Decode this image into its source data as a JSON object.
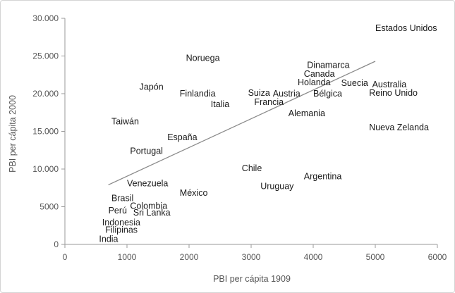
{
  "chart_data": {
    "type": "scatter",
    "title": "",
    "xlabel": "PBI per cápita 1909",
    "ylabel": "PBI per cápita 2000",
    "xlim": [
      0,
      6000
    ],
    "ylim": [
      0,
      30000
    ],
    "x_ticks": [
      0,
      1000,
      2000,
      3000,
      4000,
      5000,
      6000
    ],
    "x_tick_labels": [
      "0",
      "1000",
      "2000",
      "3000",
      "4000",
      "5000",
      "6000"
    ],
    "y_ticks": [
      0,
      5000,
      10000,
      15000,
      20000,
      25000,
      30000
    ],
    "y_tick_labels": [
      "0",
      "5000",
      "10.000",
      "15.000",
      "20.000",
      "25.000",
      "30.000"
    ],
    "grid": false,
    "legend": "none",
    "trendline": {
      "x": [
        700,
        5000
      ],
      "y": [
        7900,
        24300
      ]
    },
    "points": [
      {
        "label": "Estados Unidos",
        "x": 5000,
        "y": 28700
      },
      {
        "label": "Noruega",
        "x": 1950,
        "y": 24700
      },
      {
        "label": "Dinamarca",
        "x": 3900,
        "y": 23800
      },
      {
        "label": "Canada",
        "x": 3850,
        "y": 22600
      },
      {
        "label": "Holanda",
        "x": 3750,
        "y": 21500
      },
      {
        "label": "Suecia",
        "x": 4450,
        "y": 21400
      },
      {
        "label": "Australia",
        "x": 4950,
        "y": 21200
      },
      {
        "label": "Japón",
        "x": 1200,
        "y": 20900
      },
      {
        "label": "Suiza",
        "x": 2950,
        "y": 20100
      },
      {
        "label": "Austria",
        "x": 3350,
        "y": 20000
      },
      {
        "label": "Finlandia",
        "x": 1850,
        "y": 20000
      },
      {
        "label": "Bélgica",
        "x": 4000,
        "y": 20000
      },
      {
        "label": "Reino Unido",
        "x": 4900,
        "y": 20100
      },
      {
        "label": "Francia",
        "x": 3050,
        "y": 18900
      },
      {
        "label": "Italia",
        "x": 2350,
        "y": 18600
      },
      {
        "label": "Alemania",
        "x": 3600,
        "y": 17400
      },
      {
        "label": "Taiwán",
        "x": 750,
        "y": 16300
      },
      {
        "label": "Nueva Zelanda",
        "x": 4900,
        "y": 15500
      },
      {
        "label": "España",
        "x": 1650,
        "y": 14200
      },
      {
        "label": "Portugal",
        "x": 1050,
        "y": 12400
      },
      {
        "label": "Chile",
        "x": 2850,
        "y": 10100
      },
      {
        "label": "Argentina",
        "x": 3850,
        "y": 9000
      },
      {
        "label": "Venezuela",
        "x": 1000,
        "y": 8100
      },
      {
        "label": "Uruguay",
        "x": 3150,
        "y": 7700
      },
      {
        "label": "México",
        "x": 1850,
        "y": 6800
      },
      {
        "label": "Brasil",
        "x": 750,
        "y": 6100
      },
      {
        "label": "Colombia",
        "x": 1050,
        "y": 5100
      },
      {
        "label": "Perú",
        "x": 700,
        "y": 4500
      },
      {
        "label": "Sri Lanka",
        "x": 1100,
        "y": 4200
      },
      {
        "label": "Indonesia",
        "x": 600,
        "y": 2900
      },
      {
        "label": "Filipinas",
        "x": 650,
        "y": 1900
      },
      {
        "label": "India",
        "x": 550,
        "y": 700
      }
    ]
  }
}
